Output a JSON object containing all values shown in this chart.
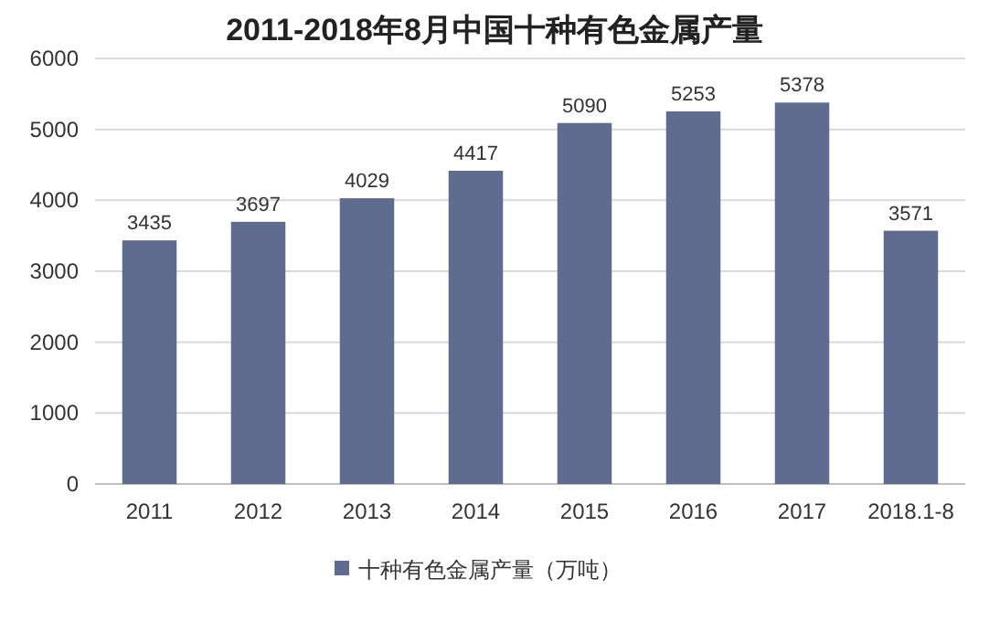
{
  "chart_data": {
    "type": "bar",
    "title": "2011-2018年8月中国十种有色金属产量",
    "categories": [
      "2011",
      "2012",
      "2013",
      "2014",
      "2015",
      "2016",
      "2017",
      "2018.1-8"
    ],
    "series": [
      {
        "name": "十种有色金属产量（万吨）",
        "color": "#5f6b8f",
        "values": [
          3435,
          3697,
          4029,
          4417,
          5090,
          5253,
          5378,
          3571
        ]
      }
    ],
    "ylim": [
      0,
      6000
    ],
    "yticks": [
      0,
      1000,
      2000,
      3000,
      4000,
      5000,
      6000
    ],
    "grid": "y",
    "data_labels": true,
    "legend": "bottom"
  }
}
